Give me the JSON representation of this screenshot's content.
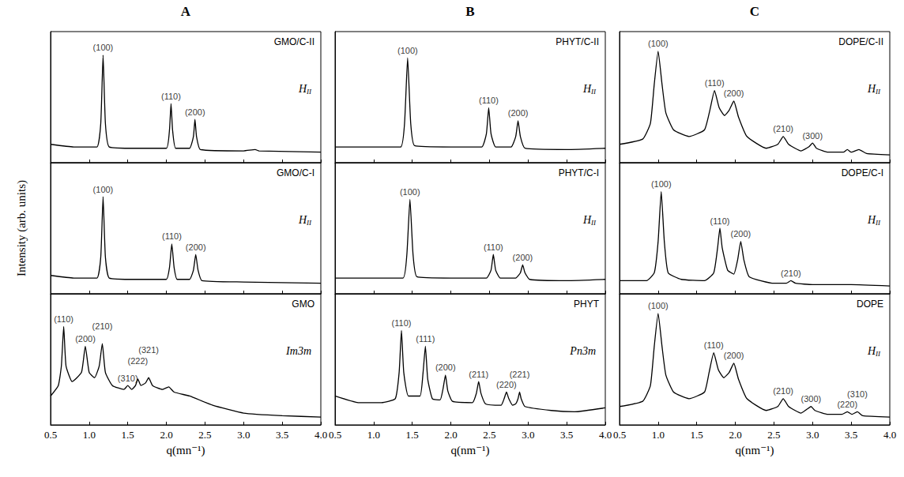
{
  "chart_data": [
    {
      "type": "line",
      "title": "A",
      "panel_label": "GMO/C-II",
      "phase": {
        "text": "H",
        "subscript": "II"
      },
      "color": "#000000",
      "tick_labels": false,
      "xlim": [
        0.5,
        4.0
      ],
      "xticks": [
        0.5,
        {
          "value": 1,
          "label": "1.0"
        },
        1.5,
        {
          "value": 2,
          "label": "2.0"
        },
        2.5,
        {
          "value": 3,
          "label": "3.0"
        },
        3.5,
        {
          "value": 4,
          "label": "4.0"
        }
      ],
      "ylim": [
        0,
        1
      ],
      "x": [
        0.5,
        0.8,
        1.1,
        1.15,
        1.18,
        1.21,
        1.26,
        1.6,
        2.0,
        2.04,
        2.06,
        2.08,
        2.12,
        2.3,
        2.35,
        2.37,
        2.39,
        2.44,
        3.0,
        3.15,
        3.2,
        4.0
      ],
      "values": [
        0.14,
        0.12,
        0.12,
        0.3,
        0.82,
        0.3,
        0.12,
        0.11,
        0.11,
        0.25,
        0.45,
        0.25,
        0.11,
        0.11,
        0.2,
        0.33,
        0.2,
        0.1,
        0.09,
        0.1,
        0.09,
        0.08
      ],
      "peaks": [
        {
          "label": "(100)",
          "x": 1.18,
          "y": 0.82
        },
        {
          "label": "(110)",
          "x": 2.06,
          "y": 0.45
        },
        {
          "label": "(200)",
          "x": 2.37,
          "y": 0.33
        }
      ]
    },
    {
      "type": "line",
      "title": "B",
      "panel_label": "PHYT/C-II",
      "phase": {
        "text": "H",
        "subscript": "II"
      },
      "color": "#000000",
      "tick_labels": false,
      "xlim": [
        0.5,
        4.0
      ],
      "xticks": [
        0.5,
        {
          "value": 1,
          "label": "1.0"
        },
        1.5,
        {
          "value": 2,
          "label": "2.0"
        },
        2.5,
        {
          "value": 3,
          "label": "3.0"
        },
        3.5,
        {
          "value": 4,
          "label": "4.0"
        }
      ],
      "ylim": [
        0,
        1
      ],
      "x": [
        0.5,
        0.9,
        1.35,
        1.4,
        1.44,
        1.48,
        1.53,
        2.0,
        2.4,
        2.46,
        2.49,
        2.52,
        2.58,
        2.78,
        2.84,
        2.87,
        2.9,
        2.96,
        3.5,
        4.0
      ],
      "values": [
        0.12,
        0.12,
        0.12,
        0.3,
        0.8,
        0.3,
        0.13,
        0.12,
        0.12,
        0.22,
        0.42,
        0.22,
        0.12,
        0.12,
        0.2,
        0.32,
        0.2,
        0.11,
        0.1,
        0.11
      ],
      "peaks": [
        {
          "label": "(100)",
          "x": 1.44,
          "y": 0.8
        },
        {
          "label": "(110)",
          "x": 2.49,
          "y": 0.42
        },
        {
          "label": "(200)",
          "x": 2.87,
          "y": 0.32
        }
      ]
    },
    {
      "type": "line",
      "title": "C",
      "panel_label": "DOPE/C-II",
      "phase": {
        "text": "H",
        "subscript": "II"
      },
      "color": "#000000",
      "tick_labels": false,
      "xlim": [
        0.5,
        4.0
      ],
      "xticks": [
        0.5,
        {
          "value": 1,
          "label": "1.0"
        },
        1.5,
        {
          "value": 2,
          "label": "2.0"
        },
        2.5,
        {
          "value": 3,
          "label": "3.0"
        },
        3.5,
        {
          "value": 4,
          "label": "4.0"
        }
      ],
      "ylim": [
        0,
        1
      ],
      "x": [
        0.5,
        0.8,
        0.9,
        0.95,
        1.0,
        1.05,
        1.1,
        1.2,
        1.4,
        1.6,
        1.67,
        1.73,
        1.79,
        1.86,
        1.92,
        1.98,
        2.04,
        2.15,
        2.4,
        2.55,
        2.62,
        2.69,
        2.85,
        2.95,
        3.0,
        3.05,
        3.2,
        3.4,
        3.45,
        3.5,
        3.6,
        3.7,
        4.0
      ],
      "values": [
        0.14,
        0.18,
        0.3,
        0.6,
        0.85,
        0.6,
        0.38,
        0.25,
        0.2,
        0.25,
        0.4,
        0.55,
        0.42,
        0.36,
        0.4,
        0.47,
        0.35,
        0.2,
        0.11,
        0.14,
        0.2,
        0.14,
        0.09,
        0.12,
        0.15,
        0.11,
        0.08,
        0.08,
        0.1,
        0.08,
        0.1,
        0.07,
        0.06
      ],
      "peaks": [
        {
          "label": "(100)",
          "x": 1.0,
          "y": 0.85
        },
        {
          "label": "(110)",
          "x": 1.73,
          "y": 0.55
        },
        {
          "label": "(200)",
          "x": 1.98,
          "y": 0.47
        },
        {
          "label": "(210)",
          "x": 2.62,
          "y": 0.2
        },
        {
          "label": "(300)",
          "x": 3.0,
          "y": 0.15
        }
      ]
    },
    {
      "type": "line",
      "panel_label": "GMO/C-I",
      "phase": {
        "text": "H",
        "subscript": "II"
      },
      "color": "#000000",
      "tick_labels": false,
      "y_label": "Intensity (arb. units)",
      "xlim": [
        0.5,
        4.0
      ],
      "xticks": [
        0.5,
        {
          "value": 1,
          "label": "1.0"
        },
        1.5,
        {
          "value": 2,
          "label": "2.0"
        },
        2.5,
        {
          "value": 3,
          "label": "3.0"
        },
        3.5,
        {
          "value": 4,
          "label": "4.0"
        }
      ],
      "ylim": [
        0,
        1
      ],
      "x": [
        0.5,
        0.8,
        1.1,
        1.15,
        1.18,
        1.21,
        1.26,
        1.6,
        2.0,
        2.04,
        2.07,
        2.1,
        2.14,
        2.3,
        2.35,
        2.38,
        2.41,
        2.46,
        3.0,
        4.0
      ],
      "values": [
        0.14,
        0.12,
        0.12,
        0.28,
        0.74,
        0.28,
        0.12,
        0.11,
        0.11,
        0.2,
        0.38,
        0.2,
        0.11,
        0.11,
        0.18,
        0.3,
        0.18,
        0.1,
        0.09,
        0.08
      ],
      "peaks": [
        {
          "label": "(100)",
          "x": 1.18,
          "y": 0.74
        },
        {
          "label": "(110)",
          "x": 2.07,
          "y": 0.38
        },
        {
          "label": "(200)",
          "x": 2.38,
          "y": 0.3
        }
      ]
    },
    {
      "type": "line",
      "panel_label": "PHYT/C-I",
      "phase": {
        "text": "H",
        "subscript": "II"
      },
      "color": "#000000",
      "tick_labels": false,
      "xlim": [
        0.5,
        4.0
      ],
      "xticks": [
        0.5,
        {
          "value": 1,
          "label": "1.0"
        },
        1.5,
        {
          "value": 2,
          "label": "2.0"
        },
        2.5,
        {
          "value": 3,
          "label": "3.0"
        },
        3.5,
        {
          "value": 4,
          "label": "4.0"
        }
      ],
      "ylim": [
        0,
        1
      ],
      "x": [
        0.5,
        0.9,
        1.38,
        1.43,
        1.47,
        1.51,
        1.56,
        2.0,
        2.46,
        2.52,
        2.55,
        2.58,
        2.64,
        2.84,
        2.9,
        2.93,
        2.96,
        3.02,
        3.5,
        4.0
      ],
      "values": [
        0.12,
        0.12,
        0.12,
        0.3,
        0.72,
        0.3,
        0.13,
        0.12,
        0.12,
        0.18,
        0.3,
        0.18,
        0.12,
        0.12,
        0.16,
        0.22,
        0.16,
        0.11,
        0.1,
        0.11
      ],
      "peaks": [
        {
          "label": "(100)",
          "x": 1.47,
          "y": 0.72
        },
        {
          "label": "(110)",
          "x": 2.55,
          "y": 0.3
        },
        {
          "label": "(200)",
          "x": 2.93,
          "y": 0.22
        }
      ]
    },
    {
      "type": "line",
      "panel_label": "DOPE/C-I",
      "phase": {
        "text": "H",
        "subscript": "II"
      },
      "color": "#000000",
      "tick_labels": false,
      "xlim": [
        0.5,
        4.0
      ],
      "xticks": [
        0.5,
        {
          "value": 1,
          "label": "1.0"
        },
        1.5,
        {
          "value": 2,
          "label": "2.0"
        },
        2.5,
        {
          "value": 3,
          "label": "3.0"
        },
        3.5,
        {
          "value": 4,
          "label": "4.0"
        }
      ],
      "ylim": [
        0,
        1
      ],
      "x": [
        0.5,
        0.85,
        0.95,
        1.0,
        1.04,
        1.08,
        1.13,
        1.3,
        1.6,
        1.72,
        1.77,
        1.8,
        1.83,
        1.9,
        1.98,
        2.03,
        2.07,
        2.11,
        2.18,
        2.5,
        2.66,
        2.72,
        2.78,
        3.0,
        3.5,
        4.0
      ],
      "values": [
        0.1,
        0.1,
        0.16,
        0.4,
        0.78,
        0.4,
        0.16,
        0.11,
        0.1,
        0.16,
        0.35,
        0.5,
        0.35,
        0.18,
        0.15,
        0.26,
        0.4,
        0.26,
        0.13,
        0.08,
        0.08,
        0.1,
        0.08,
        0.07,
        0.07,
        0.06
      ],
      "peaks": [
        {
          "label": "(100)",
          "x": 1.04,
          "y": 0.78
        },
        {
          "label": "(110)",
          "x": 1.8,
          "y": 0.5
        },
        {
          "label": "(200)",
          "x": 2.07,
          "y": 0.4
        },
        {
          "label": "(210)",
          "x": 2.72,
          "y": 0.1
        }
      ]
    },
    {
      "type": "line",
      "panel_label": "GMO",
      "phase": {
        "text": "Im3m"
      },
      "color": "#000000",
      "tick_labels": "x",
      "x_label": "q(mn⁻¹)",
      "xlim": [
        0.5,
        4.0
      ],
      "xticks": [
        0.5,
        {
          "value": 1,
          "label": "1.0"
        },
        1.5,
        {
          "value": 2,
          "label": "2.0"
        },
        2.5,
        {
          "value": 3,
          "label": "3.0"
        },
        3.5,
        {
          "value": 4,
          "label": "4.0"
        }
      ],
      "ylim": [
        0,
        1
      ],
      "x": [
        0.5,
        0.6,
        0.64,
        0.67,
        0.7,
        0.78,
        0.9,
        0.95,
        1.0,
        1.07,
        1.13,
        1.17,
        1.21,
        1.3,
        1.45,
        1.5,
        1.55,
        1.6,
        1.63,
        1.67,
        1.73,
        1.77,
        1.82,
        1.95,
        2.03,
        2.1,
        2.3,
        2.6,
        3.0,
        3.5,
        4.0
      ],
      "values": [
        0.22,
        0.3,
        0.45,
        0.75,
        0.45,
        0.33,
        0.4,
        0.6,
        0.4,
        0.36,
        0.45,
        0.62,
        0.4,
        0.3,
        0.27,
        0.3,
        0.27,
        0.3,
        0.35,
        0.3,
        0.32,
        0.36,
        0.3,
        0.27,
        0.29,
        0.25,
        0.22,
        0.15,
        0.09,
        0.07,
        0.06
      ],
      "peaks": [
        {
          "label": "(110)",
          "x": 0.67,
          "y": 0.75
        },
        {
          "label": "(200)",
          "x": 0.95,
          "y": 0.6
        },
        {
          "label": "(210)",
          "x": 1.17,
          "y": 0.62
        },
        {
          "label": "(310)",
          "x": 1.5,
          "y": 0.3
        },
        {
          "label": "(222)",
          "x": 1.63,
          "y": 0.35
        },
        {
          "label": "(321)",
          "x": 1.77,
          "y": 0.36
        }
      ]
    },
    {
      "type": "line",
      "panel_label": "PHYT",
      "phase": {
        "text": "Pn3m"
      },
      "color": "#000000",
      "tick_labels": "x",
      "x_label": "q(nm⁻¹)",
      "xlim": [
        0.5,
        4.0
      ],
      "xticks": [
        0.5,
        {
          "value": 1,
          "label": "1.0"
        },
        1.5,
        {
          "value": 2,
          "label": "2.0"
        },
        2.5,
        {
          "value": 3,
          "label": "3.0"
        },
        3.5,
        {
          "value": 4,
          "label": "4.0"
        }
      ],
      "ylim": [
        0,
        1
      ],
      "x": [
        0.5,
        0.8,
        1.1,
        1.28,
        1.33,
        1.36,
        1.39,
        1.45,
        1.6,
        1.64,
        1.67,
        1.7,
        1.76,
        1.86,
        1.9,
        1.93,
        1.96,
        2.02,
        2.28,
        2.33,
        2.36,
        2.39,
        2.45,
        2.65,
        2.69,
        2.72,
        2.75,
        2.8,
        2.84,
        2.87,
        2.89,
        2.91,
        2.96,
        3.3,
        3.6,
        4.0
      ],
      "values": [
        0.22,
        0.17,
        0.17,
        0.2,
        0.4,
        0.72,
        0.4,
        0.22,
        0.22,
        0.4,
        0.6,
        0.35,
        0.2,
        0.19,
        0.28,
        0.38,
        0.26,
        0.18,
        0.17,
        0.24,
        0.33,
        0.24,
        0.16,
        0.15,
        0.2,
        0.25,
        0.2,
        0.15,
        0.16,
        0.2,
        0.25,
        0.2,
        0.14,
        0.11,
        0.1,
        0.13
      ],
      "peaks": [
        {
          "label": "(110)",
          "x": 1.36,
          "y": 0.72
        },
        {
          "label": "(111)",
          "x": 1.67,
          "y": 0.6
        },
        {
          "label": "(200)",
          "x": 1.93,
          "y": 0.38
        },
        {
          "label": "(211)",
          "x": 2.36,
          "y": 0.33
        },
        {
          "label": "(220)",
          "x": 2.72,
          "y": 0.25
        },
        {
          "label": "(221)",
          "x": 2.89,
          "y": 0.25
        }
      ]
    },
    {
      "type": "line",
      "panel_label": "DOPE",
      "phase": {
        "text": "H",
        "subscript": "II"
      },
      "color": "#000000",
      "tick_labels": "x",
      "x_label": "q(nm⁻¹)",
      "xlim": [
        0.5,
        4.0
      ],
      "xticks": [
        0.5,
        {
          "value": 1,
          "label": "1.0"
        },
        1.5,
        {
          "value": 2,
          "label": "2.0"
        },
        2.5,
        {
          "value": 3,
          "label": "3.0"
        },
        3.5,
        {
          "value": 4,
          "label": "4.0"
        }
      ],
      "ylim": [
        0,
        1
      ],
      "x": [
        0.5,
        0.8,
        0.9,
        0.95,
        1.0,
        1.05,
        1.1,
        1.2,
        1.4,
        1.6,
        1.66,
        1.72,
        1.78,
        1.85,
        1.92,
        1.98,
        2.04,
        2.15,
        2.4,
        2.55,
        2.62,
        2.69,
        2.85,
        2.93,
        2.98,
        3.03,
        3.2,
        3.38,
        3.45,
        3.51,
        3.58,
        3.65,
        4.0
      ],
      "values": [
        0.14,
        0.18,
        0.3,
        0.6,
        0.85,
        0.6,
        0.38,
        0.25,
        0.2,
        0.25,
        0.4,
        0.55,
        0.42,
        0.36,
        0.4,
        0.47,
        0.35,
        0.2,
        0.11,
        0.14,
        0.2,
        0.14,
        0.09,
        0.12,
        0.14,
        0.11,
        0.08,
        0.08,
        0.1,
        0.08,
        0.1,
        0.07,
        0.06
      ],
      "peaks": [
        {
          "label": "(100)",
          "x": 1.0,
          "y": 0.85
        },
        {
          "label": "(110)",
          "x": 1.72,
          "y": 0.55
        },
        {
          "label": "(200)",
          "x": 1.98,
          "y": 0.47
        },
        {
          "label": "(210)",
          "x": 2.62,
          "y": 0.2
        },
        {
          "label": "(300)",
          "x": 2.98,
          "y": 0.14
        },
        {
          "label": "(220)",
          "x": 3.45,
          "y": 0.1
        },
        {
          "label": "(310)",
          "x": 3.58,
          "y": 0.1
        }
      ]
    }
  ]
}
